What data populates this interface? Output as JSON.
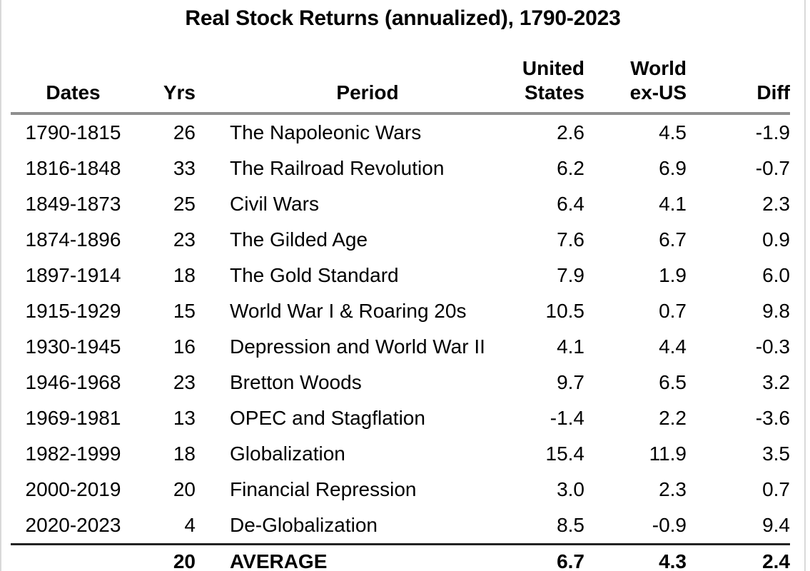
{
  "colors": {
    "background": "#ffffff",
    "text": "#000000",
    "header_rule": "#8f8f8f",
    "footer_rule": "#232323",
    "frame_border": "#d9d9d9"
  },
  "chart_data": {
    "type": "table",
    "title": "Real Stock Returns (annualized), 1790-2023",
    "columns": [
      "Dates",
      "Yrs",
      "Period",
      "United\nStates",
      "World\nex-US",
      "Diff"
    ],
    "column_keys": [
      "dates",
      "yrs",
      "period",
      "us",
      "world",
      "diff"
    ],
    "rows": [
      [
        "1790-1815",
        "26",
        "The Napoleonic Wars",
        "2.6",
        "4.5",
        "-1.9"
      ],
      [
        "1816-1848",
        "33",
        "The Railroad Revolution",
        "6.2",
        "6.9",
        "-0.7"
      ],
      [
        "1849-1873",
        "25",
        "Civil Wars",
        "6.4",
        "4.1",
        "2.3"
      ],
      [
        "1874-1896",
        "23",
        "The Gilded Age",
        "7.6",
        "6.7",
        "0.9"
      ],
      [
        "1897-1914",
        "18",
        "The Gold Standard",
        "7.9",
        "1.9",
        "6.0"
      ],
      [
        "1915-1929",
        "15",
        "World War I & Roaring 20s",
        "10.5",
        "0.7",
        "9.8"
      ],
      [
        "1930-1945",
        "16",
        "Depression and World War II",
        "4.1",
        "4.4",
        "-0.3"
      ],
      [
        "1946-1968",
        "23",
        "Bretton Woods",
        "9.7",
        "6.5",
        "3.2"
      ],
      [
        "1969-1981",
        "13",
        "OPEC and Stagflation",
        "-1.4",
        "2.2",
        "-3.6"
      ],
      [
        "1982-1999",
        "18",
        "Globalization",
        "15.4",
        "11.9",
        "3.5"
      ],
      [
        "2000-2019",
        "20",
        "Financial Repression",
        "3.0",
        "2.3",
        "0.7"
      ],
      [
        "2020-2023",
        "4",
        "De-Globalization",
        "8.5",
        "-0.9",
        "9.4"
      ]
    ],
    "footer_row": [
      "",
      "20",
      "AVERAGE",
      "6.7",
      "4.3",
      "2.4"
    ]
  }
}
